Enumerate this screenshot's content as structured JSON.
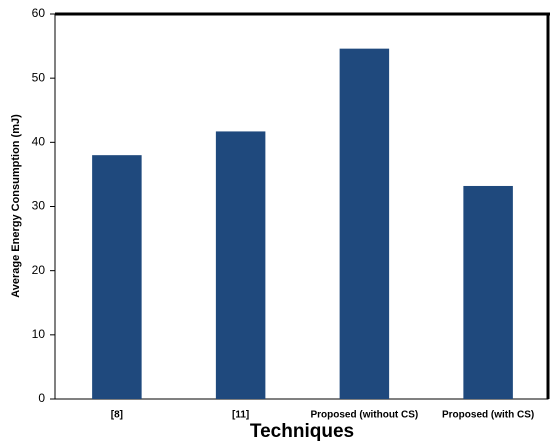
{
  "chart_data": {
    "type": "bar",
    "x_label": "Techniques",
    "y_label": "Average Energy Consumption (mJ)",
    "categories": [
      "[8]",
      "[11]",
      "Proposed (without CS)",
      "Proposed (with CS)"
    ],
    "values": [
      38,
      41.7,
      54.6,
      33.2
    ],
    "color": "#1f497d",
    "ylim": [
      0,
      60
    ],
    "yticks": [
      0,
      10,
      20,
      30,
      40,
      50,
      60
    ],
    "grid": false
  }
}
